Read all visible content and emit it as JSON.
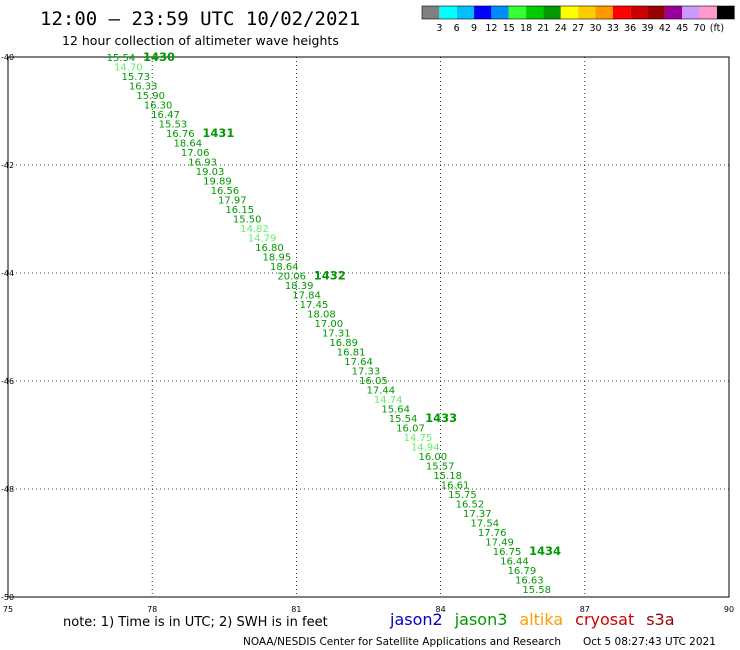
{
  "header": {
    "title": "12:00 – 23:59 UTC 10/02/2021",
    "subtitle": "12 hour collection of altimeter wave heights"
  },
  "colorbar": {
    "swatches": [
      "#808080",
      "#00ffff",
      "#00bfff",
      "#0000ff",
      "#008bff",
      "#33ff33",
      "#00cc00",
      "#009900",
      "#ffff00",
      "#ffcc00",
      "#ff9900",
      "#ff0000",
      "#cc0000",
      "#990000",
      "#990099",
      "#cc99ff",
      "#ff99cc",
      "#000000"
    ],
    "labels": [
      "3",
      "6",
      "9",
      "12",
      "15",
      "18",
      "21",
      "24",
      "27",
      "30",
      "33",
      "36",
      "39",
      "42",
      "45",
      "70",
      "(ft)"
    ]
  },
  "map": {
    "lat_range": [
      -50,
      -40
    ],
    "lon_range": [
      75,
      90
    ],
    "lat_labels": [
      "-40",
      "-42",
      "-44",
      "-46",
      "-48",
      "-50"
    ],
    "lon_labels": [
      "75",
      "78",
      "81",
      "84",
      "87",
      "90"
    ],
    "track_color": "#009900",
    "light_color": "#66ee66",
    "track_start": {
      "lon": 77.35,
      "lat": -40.0
    },
    "track_end": {
      "lon": 86.0,
      "lat": -49.85
    },
    "heights": [
      "15.54",
      "14.70",
      "15.73",
      "16.33",
      "15.90",
      "16.30",
      "16.47",
      "15.53",
      "16.76",
      "18.64",
      "17.06",
      "16.93",
      "19.03",
      "19.89",
      "16.56",
      "17.97",
      "16.15",
      "15.50",
      "14.82",
      "14.79",
      "16.80",
      "18.95",
      "18.64",
      "20.06",
      "18.39",
      "17.84",
      "17.45",
      "18.08",
      "17.00",
      "17.31",
      "16.89",
      "16.81",
      "17.64",
      "17.33",
      "16.05",
      "17.44",
      "14.74",
      "15.64",
      "15.54",
      "16.07",
      "14.75",
      "14.94",
      "16.00",
      "15.57",
      "15.18",
      "16.61",
      "15.75",
      "16.52",
      "17.37",
      "17.54",
      "17.76",
      "17.49",
      "16.75",
      "16.44",
      "16.79",
      "16.63",
      "15.58"
    ],
    "light_indices": [
      1,
      18,
      19,
      36,
      40,
      41
    ],
    "times": [
      {
        "label": "1430",
        "index": 0
      },
      {
        "label": "1431",
        "index": 8
      },
      {
        "label": "1432",
        "index": 23
      },
      {
        "label": "1433",
        "index": 38
      },
      {
        "label": "1434",
        "index": 52
      }
    ]
  },
  "footer": {
    "note": "note:  1) Time is in UTC; 2) SWH is in feet",
    "missions": [
      {
        "name": "jason2",
        "color": "#0000cc"
      },
      {
        "name": "jason3",
        "color": "#009900"
      },
      {
        "name": "altika",
        "color": "#ff9900"
      },
      {
        "name": "cryosat",
        "color": "#cc0000"
      },
      {
        "name": "s3a",
        "color": "#990000"
      }
    ],
    "credit": "NOAA/NESDIS Center for Satellite Applications and Research",
    "generated": "Oct  5 08:27:43 UTC 2021"
  }
}
